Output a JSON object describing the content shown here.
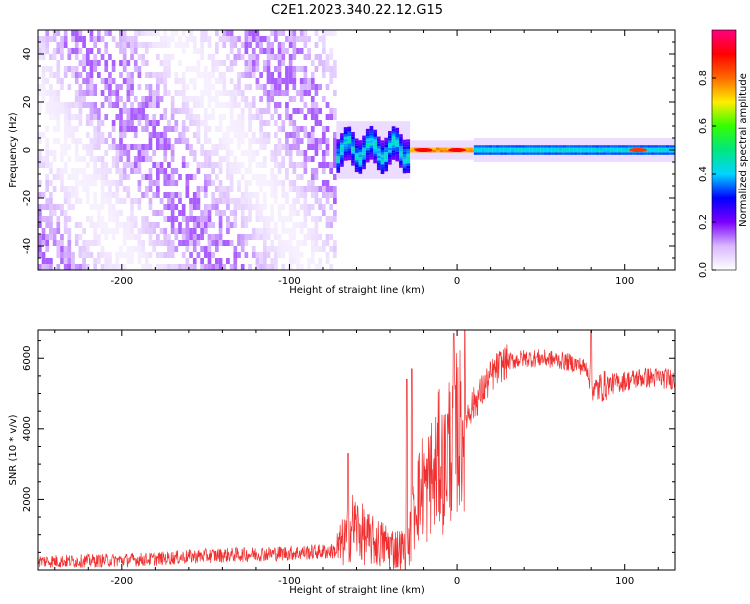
{
  "title": "C2E1.2023.340.22.12.G15",
  "colorbar": {
    "label": "Normalized spectral amplitude",
    "ticks": [
      "0.0",
      "0.2",
      "0.4",
      "0.6",
      "0.8"
    ],
    "tick_values": [
      0.0,
      0.2,
      0.4,
      0.6,
      0.8
    ],
    "range": [
      0,
      1
    ],
    "colors": [
      "#ffffff",
      "#d9b8ff",
      "#7a00ff",
      "#0000ff",
      "#00d5ff",
      "#00e680",
      "#33ff00",
      "#ffee00",
      "#ff6a00",
      "#ff0000",
      "#ff0080"
    ]
  },
  "chart_data": [
    {
      "type": "heatmap",
      "title": "C2E1.2023.340.22.12.G15",
      "xlabel": "Height of straight line (km)",
      "ylabel": "Frequency (Hz)",
      "xlim": [
        -250,
        130
      ],
      "ylim": [
        -50,
        50
      ],
      "xticks": [
        -200,
        -100,
        0,
        100
      ],
      "yticks": [
        -40,
        -20,
        0,
        20,
        40
      ],
      "xtick_labels": [
        "-200",
        "-100",
        "0",
        "100"
      ],
      "ytick_labels": [
        "-40",
        "-20",
        "0",
        "20",
        "40"
      ],
      "zlabel": "Normalized spectral amplitude",
      "regions": [
        {
          "x": [
            -250,
            -72
          ],
          "y": [
            -50,
            50
          ],
          "amplitude": [
            0.02,
            0.15
          ],
          "description": "scattered noise"
        },
        {
          "x": [
            -72,
            -28
          ],
          "y": [
            -7,
            7
          ],
          "amplitude": [
            0.2,
            0.5
          ]
        },
        {
          "x": [
            -28,
            10
          ],
          "y": [
            -1,
            1
          ],
          "amplitude": [
            0.6,
            1.0
          ]
        },
        {
          "x": [
            10,
            130
          ],
          "y": [
            -2,
            2
          ],
          "amplitude": [
            0.3,
            0.5
          ]
        }
      ],
      "peaks": [
        {
          "x": -20,
          "y": 0,
          "amplitude": 0.9
        },
        {
          "x": 0,
          "y": 0,
          "amplitude": 0.9
        },
        {
          "x": 108,
          "y": 0,
          "amplitude": 0.85
        }
      ]
    },
    {
      "type": "line",
      "xlabel": "Height of straight line (km)",
      "ylabel": "SNR (10 * v/v)",
      "xlim": [
        -250,
        130
      ],
      "ylim": [
        0,
        6800
      ],
      "xticks": [
        -200,
        -100,
        0,
        100
      ],
      "yticks": [
        2000,
        4000,
        6000
      ],
      "xtick_labels": [
        "-200",
        "-100",
        "0",
        "100"
      ],
      "ytick_labels": [
        "2000",
        "4000",
        "6000"
      ],
      "color": "#f03030",
      "series": [
        {
          "x": [
            -250,
            -230,
            -200,
            -180,
            -160,
            -140,
            -120,
            -100,
            -80,
            -72,
            -66,
            -62,
            -58,
            -54,
            -50,
            -46,
            -42,
            -38,
            -34,
            -30,
            -28,
            -26,
            -24,
            -22,
            -20,
            -18,
            -16,
            -14,
            -12,
            -10,
            -8,
            -6,
            -4,
            -2,
            0,
            2,
            4,
            6,
            8,
            10,
            14,
            18,
            22,
            26,
            30,
            35,
            40,
            50,
            60,
            70,
            78,
            80,
            82,
            84,
            90,
            100,
            110,
            120,
            130
          ],
          "y": [
            250,
            250,
            280,
            310,
            380,
            420,
            450,
            480,
            520,
            540,
            900,
            1300,
            1100,
            900,
            800,
            750,
            700,
            620,
            580,
            600,
            900,
            1500,
            2300,
            2000,
            2600,
            2100,
            2800,
            2400,
            3000,
            3200,
            2700,
            3400,
            3600,
            3100,
            4000,
            3900,
            4300,
            4400,
            4600,
            4700,
            5000,
            5300,
            5600,
            5800,
            5900,
            5950,
            6000,
            6000,
            5950,
            5850,
            5700,
            5400,
            5050,
            5150,
            5250,
            5350,
            5450,
            5450,
            5400
          ]
        }
      ],
      "annotations": [
        {
          "x": -72,
          "description": "transition from noise floor to variable signal"
        },
        {
          "x": -2,
          "y": 6700,
          "description": "spike"
        },
        {
          "x": 80,
          "y": 6800,
          "description": "spike followed by drop"
        }
      ]
    }
  ]
}
